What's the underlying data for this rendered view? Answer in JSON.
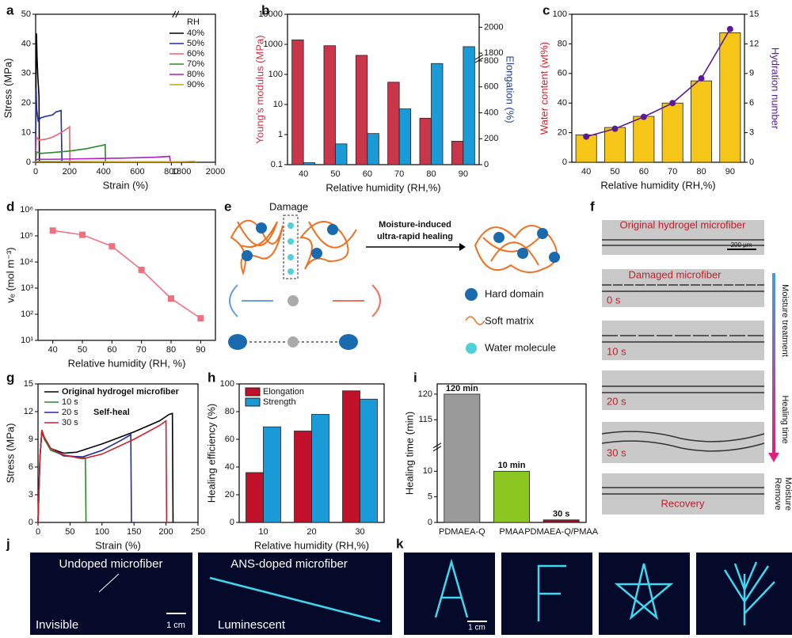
{
  "chart_data": [
    {
      "type": "line",
      "xlabel": "Strain (%)",
      "ylabel": "Stress (MPa)",
      "legend_title": "RH",
      "legend": "upper right",
      "xlim": [
        0,
        2000
      ],
      "xbreak": [
        800,
        1800
      ],
      "xticks": [
        0,
        200,
        400,
        600,
        800,
        1800,
        2000
      ],
      "ylim": [
        0,
        50
      ],
      "yticks": [
        0,
        10,
        20,
        30,
        40,
        50
      ],
      "series": [
        {
          "name": "40%",
          "color": "#000000",
          "x": [
            0,
            3,
            5,
            8,
            12,
            16,
            20,
            22
          ],
          "values": [
            0,
            38,
            43.5,
            36,
            30,
            26,
            22,
            0
          ]
        },
        {
          "name": "50%",
          "color": "#1f2d9e",
          "x": [
            0,
            3,
            6,
            15,
            30,
            60,
            100,
            120,
            150,
            155
          ],
          "values": [
            0,
            25,
            18,
            14,
            15,
            15.5,
            16,
            17,
            17.5,
            0
          ]
        },
        {
          "name": "60%",
          "color": "#e8636b",
          "x": [
            0,
            5,
            20,
            60,
            100,
            150,
            190,
            200,
            202
          ],
          "values": [
            0,
            8.5,
            7.5,
            7.8,
            8.5,
            10,
            11.5,
            12,
            0
          ]
        },
        {
          "name": "70%",
          "color": "#2a8a2a",
          "x": [
            0,
            5,
            30,
            100,
            200,
            300,
            400,
            410,
            412
          ],
          "values": [
            0,
            3.5,
            3,
            3.3,
            3.8,
            4.6,
            5.8,
            6,
            0
          ]
        },
        {
          "name": "80%",
          "color": "#b01fc0",
          "x": [
            0,
            5,
            100,
            300,
            500,
            700,
            790,
            795
          ],
          "values": [
            0,
            1,
            1,
            1.2,
            1.4,
            1.7,
            2,
            0
          ]
        },
        {
          "name": "90%",
          "color": "#c8a020",
          "x": [
            0,
            5,
            500,
            800,
            1800,
            1880,
            1885
          ],
          "values": [
            0,
            0.3,
            0.2,
            0.2,
            0.2,
            0.3,
            0
          ]
        }
      ]
    },
    {
      "type": "bar",
      "xlabel": "Relative humidity (RH,%)",
      "ylabel": "Young's modulus (MPa)",
      "ylabel_color": "#c9364a",
      "y2label": "Elongation (%)",
      "y2label_color": "#1f3fa0",
      "categories": [
        "40",
        "50",
        "60",
        "70",
        "80",
        "90"
      ],
      "ylim": [
        0.1,
        10000
      ],
      "yscale": "log",
      "yticks": [
        0.1,
        1,
        10,
        100,
        1000,
        10000
      ],
      "y2lim": [
        0,
        2100
      ],
      "y2break": [
        800,
        1800
      ],
      "y2ticks": [
        0,
        200,
        400,
        600,
        800,
        1800,
        2000
      ],
      "series": [
        {
          "name": "Young's modulus",
          "color": "#c9364a",
          "values": [
            1400,
            900,
            430,
            55,
            3.5,
            0.6
          ]
        },
        {
          "name": "Elongation",
          "color": "#1a9ad6",
          "axis": "y2",
          "values": [
            15,
            160,
            240,
            430,
            780,
            1850
          ]
        }
      ]
    },
    {
      "type": "bar",
      "xlabel": "Relative humidity (RH,%)",
      "ylabel": "Water content (wt%)",
      "ylabel_color": "#d0202a",
      "y2label": "Hydration number",
      "y2label_color": "#5a1a9a",
      "categories": [
        "40",
        "50",
        "60",
        "70",
        "80",
        "90"
      ],
      "ylim": [
        0,
        100
      ],
      "yticks": [
        0,
        20,
        40,
        60,
        80,
        100
      ],
      "y2lim": [
        0,
        15
      ],
      "y2ticks": [
        0,
        3,
        6,
        9,
        12,
        15
      ],
      "series": [
        {
          "name": "Water content",
          "color": "#f5c518",
          "values": [
            18.5,
            23.5,
            31,
            40,
            55,
            87.5
          ]
        },
        {
          "name": "Hydration number",
          "color": "#5a1a9a",
          "axis": "y2",
          "type": "line",
          "values": [
            2.6,
            3.4,
            4.6,
            6,
            8.5,
            13.5
          ]
        }
      ]
    },
    {
      "type": "line",
      "xlabel": "Relative humidity (RH, %)",
      "ylabel": "vₑ (mol m⁻³)",
      "markers": true,
      "xlim": [
        35,
        95
      ],
      "xticks": [
        40,
        50,
        60,
        70,
        80,
        90
      ],
      "x": [
        40,
        50,
        60,
        70,
        80,
        90
      ],
      "ylim": [
        10,
        1000000
      ],
      "yscale": "log",
      "yticks": [
        {
          "value": 10,
          "label": "10¹"
        },
        {
          "value": 100,
          "label": "10²"
        },
        {
          "value": 1000,
          "label": "10³"
        },
        {
          "value": 10000,
          "label": "10⁴"
        },
        {
          "value": 100000,
          "label": "10⁵"
        },
        {
          "value": 1000000,
          "label": "10⁶"
        }
      ],
      "series": [
        {
          "name": "vₑ",
          "color": "#f0707f",
          "values": [
            160000,
            110000,
            40000,
            5000,
            400,
            70
          ]
        }
      ]
    },
    {
      "type": "line",
      "xlabel": "Strain (%)",
      "ylabel": "Stress (MPa)",
      "legend": "upper left",
      "annotation": "Self-heal",
      "xlim": [
        0,
        250
      ],
      "xticks": [
        0,
        50,
        100,
        150,
        200,
        250
      ],
      "ylim": [
        0,
        15
      ],
      "yticks": [
        0,
        3,
        6,
        9,
        12,
        15
      ],
      "series": [
        {
          "name": "Original hydrogel microfiber",
          "color": "#000000",
          "x": [
            0,
            3,
            6,
            10,
            20,
            40,
            60,
            100,
            150,
            190,
            205,
            210,
            211
          ],
          "values": [
            0,
            7,
            10,
            9,
            8,
            7.5,
            7.6,
            8.5,
            9.8,
            11,
            11.7,
            11.8,
            0
          ]
        },
        {
          "name": "10 s",
          "color": "#2a8a2a",
          "x": [
            0,
            3,
            6,
            10,
            20,
            40,
            60,
            74,
            75
          ],
          "values": [
            0,
            7,
            9.8,
            9,
            7.8,
            7.3,
            7.1,
            7,
            0
          ]
        },
        {
          "name": "20 s",
          "color": "#1f2d9e",
          "x": [
            0,
            3,
            6,
            10,
            20,
            40,
            70,
            100,
            130,
            145,
            146
          ],
          "values": [
            0,
            7,
            9.9,
            9.2,
            8,
            7.2,
            7.1,
            7.8,
            8.9,
            9.5,
            0
          ]
        },
        {
          "name": "30 s",
          "color": "#d0202a",
          "x": [
            0,
            3,
            6,
            10,
            20,
            40,
            70,
            100,
            150,
            190,
            200,
            201
          ],
          "values": [
            0,
            7,
            10,
            9.2,
            8,
            7.3,
            6.9,
            7.4,
            9,
            10.5,
            11,
            0
          ]
        }
      ]
    },
    {
      "type": "bar",
      "xlabel": "Relative humidity (RH,%)",
      "ylabel": "Healing efficiency (%)",
      "legend": "upper left",
      "categories": [
        "10",
        "20",
        "30"
      ],
      "ylim": [
        0,
        100
      ],
      "yticks": [
        0,
        20,
        40,
        60,
        80,
        100
      ],
      "series": [
        {
          "name": "Elongation",
          "color": "#c0102a",
          "values": [
            36,
            66,
            95
          ]
        },
        {
          "name": "Strength",
          "color": "#1a9ad6",
          "values": [
            69,
            78,
            89
          ]
        }
      ]
    },
    {
      "type": "bar",
      "ylabel": "Healing time (min)",
      "categories": [
        "PDMAEA-Q",
        "PMAA",
        "PDMAEA-Q/PMAA"
      ],
      "ylim": [
        0,
        122
      ],
      "ybreak": [
        12,
        113
      ],
      "yticks": [
        0,
        5,
        10,
        115,
        120
      ],
      "series": [
        {
          "name": "Healing time",
          "colors": [
            "#9a9a9a",
            "#8cc620",
            "#a01020"
          ],
          "values": [
            120,
            10,
            0.5
          ],
          "value_labels": [
            "120 min",
            "10 min",
            "30 s"
          ]
        }
      ]
    }
  ],
  "panel_labels": [
    "a",
    "b",
    "c",
    "d",
    "e",
    "f",
    "g",
    "h",
    "i",
    "j",
    "k"
  ],
  "schematic": {
    "damage": "Damage",
    "process": [
      "Moisture-induced",
      "ultra-rapid healing"
    ],
    "legend": [
      "Hard domain",
      "Soft matrix",
      "Water molecule"
    ]
  },
  "micrographs": {
    "labels": [
      "Original hydrogel microfiber",
      "Damaged microfiber",
      "0 s",
      "10 s",
      "20 s",
      "30 s",
      "Recovery"
    ],
    "scale_bar": "200 μm",
    "arrow_labels": [
      "Moisture treatment",
      "Healing time"
    ],
    "remove": [
      "Remove",
      "Moisture"
    ]
  },
  "photos": {
    "j": [
      "Undoped microfiber",
      "Invisible",
      "1 cm",
      "ANS-doped microfiber",
      "Luminescent"
    ],
    "k_scale": "1 cm"
  }
}
